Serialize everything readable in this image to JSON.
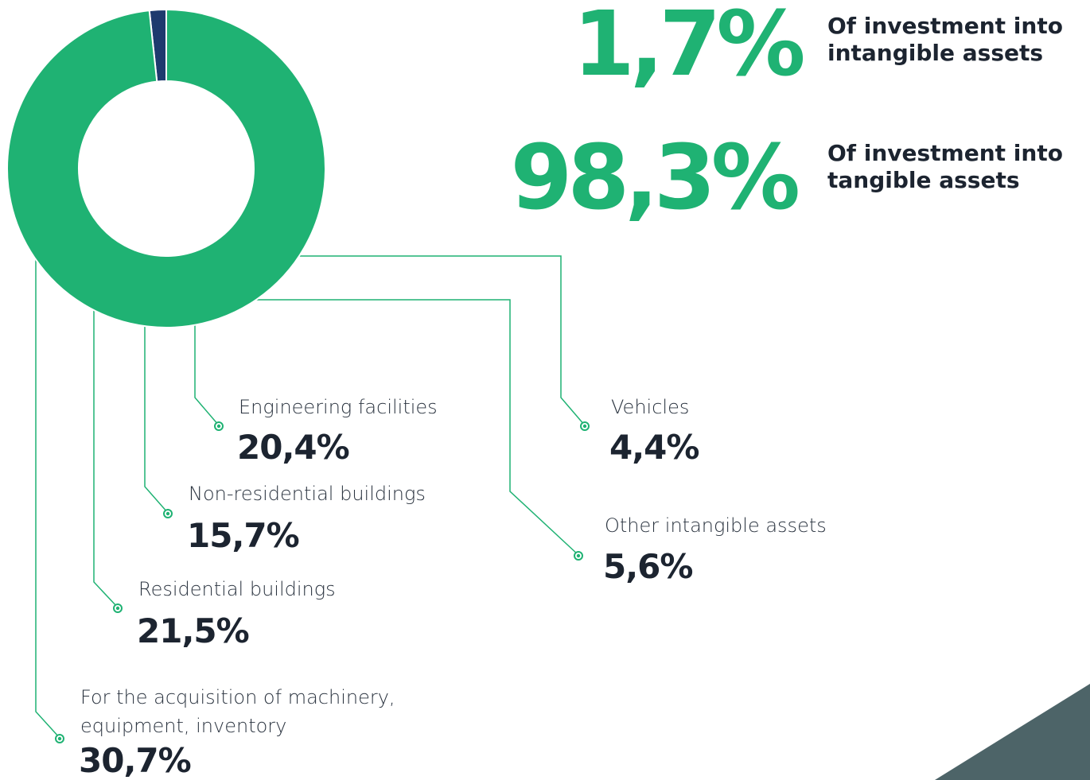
{
  "chart_data": {
    "type": "pie",
    "donut": true,
    "categories": [
      "Of investment into intangible assets",
      "Of investment into tangible assets"
    ],
    "values": [
      1.7,
      98.3
    ],
    "value_labels": [
      "1,7%",
      "98,3%"
    ],
    "colors": [
      "#1e3a6e",
      "#1fb273"
    ]
  },
  "breakdown": [
    {
      "label": "Engineering facilities",
      "value": "20,4%"
    },
    {
      "label": "Non-residential buildings",
      "value": "15,7%"
    },
    {
      "label": "Residential buildings",
      "value": "21,5%"
    },
    {
      "label": "For the acquisition of machinery, equipment, inventory",
      "value": "30,7%"
    },
    {
      "label": "Vehicles",
      "value": "4,4%"
    },
    {
      "label": "Other intangible assets",
      "value": "5,6%"
    }
  ]
}
